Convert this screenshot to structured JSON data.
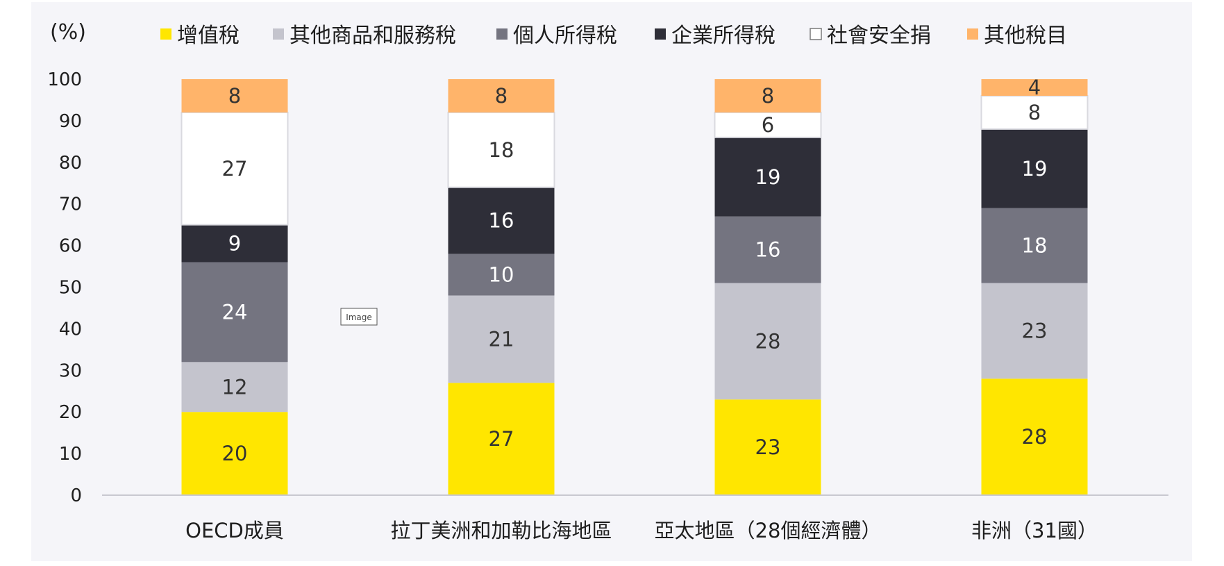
{
  "chart_data": {
    "type": "bar",
    "stacked": true,
    "unit_label": "(%)",
    "ylim": [
      0,
      100
    ],
    "yticks": [
      0,
      10,
      20,
      30,
      40,
      50,
      60,
      70,
      80,
      90,
      100
    ],
    "grid": false,
    "legend_position": "top",
    "categories": [
      "OECD成員",
      "拉丁美洲和加勒比海地區",
      "亞太地區（28個經濟體）",
      "非洲（31國）"
    ],
    "series": [
      {
        "name": "增值稅",
        "color": "#ffe600",
        "label_color": "#333333",
        "values": [
          20,
          27,
          23,
          28
        ]
      },
      {
        "name": "其他商品和服務稅",
        "color": "#c4c4cd",
        "label_color": "#333333",
        "values": [
          12,
          21,
          28,
          23
        ]
      },
      {
        "name": "個人所得稅",
        "color": "#747480",
        "label_color": "#ffffff",
        "values": [
          24,
          10,
          16,
          18
        ]
      },
      {
        "name": "企業所得稅",
        "color": "#2e2e38",
        "label_color": "#ffffff",
        "values": [
          9,
          16,
          19,
          19
        ]
      },
      {
        "name": "社會安全捐",
        "color": "#ffffff",
        "label_color": "#333333",
        "values": [
          27,
          18,
          6,
          8
        ]
      },
      {
        "name": "其他稅目",
        "color": "#ffb46a",
        "label_color": "#333333",
        "values": [
          8,
          8,
          8,
          4
        ]
      }
    ]
  },
  "badge": {
    "label": "Image"
  }
}
